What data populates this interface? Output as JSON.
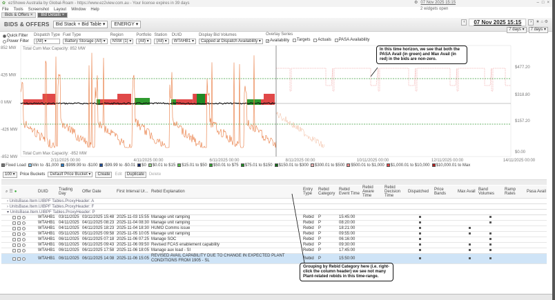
{
  "window": {
    "title": "ezShowe Australia by Global-Roam - https://www.ez2view.com.au - Your license expires in 39 days",
    "minimize": "–",
    "maximize": "□",
    "close": "×"
  },
  "menu": [
    "File",
    "Tools",
    "Screenshot",
    "Layout",
    "Window",
    "Help"
  ],
  "tabs": [
    {
      "label": "Bids & Offers",
      "active": false
    },
    {
      "label": "Bid Details",
      "active": true
    }
  ],
  "top_right": {
    "time": "07 Nov 2025 15:15",
    "status": "2 widgets open"
  },
  "header": {
    "title": "BIDS & OFFERS",
    "view_select": "Bid Stack + Bid Table",
    "market_select": "ENERGY"
  },
  "date_nav": {
    "date": "07 Nov 2025 15:15",
    "before": "7 days",
    "after": "7 days",
    "prev": "‹",
    "next": "›"
  },
  "filters": {
    "mode_options": [
      "Quick Filter",
      "Power Filter"
    ],
    "groups": [
      {
        "label": "Dispatch Type",
        "value": "(All)"
      },
      {
        "label": "Fuel Type",
        "value": "Battery Storage (All)"
      },
      {
        "label": "Region",
        "value": "NSW (1)"
      },
      {
        "label": "Portfolio",
        "value": "(All)"
      },
      {
        "label": "Station",
        "value": "(All)"
      },
      {
        "label": "DUID",
        "value": "WTAHB1"
      },
      {
        "label": "Display Bid Volumes",
        "value": "Capped at Dispatch Availability"
      }
    ],
    "overlay_label": "Overlay Series",
    "overlays": [
      "Availability",
      "Targets",
      "Actuals",
      "PASA Availability"
    ]
  },
  "chart_data": {
    "type": "area",
    "y_left_ticks": [
      "852 MW",
      "426 MW",
      "0 MW",
      "-426 MW",
      "-852 MW"
    ],
    "y_right_ticks": [
      "$477.20",
      "$318.80",
      "$157.20",
      "$0.00"
    ],
    "x_ticks": [
      "2/11/2025 00:00",
      "4/11/2025 00:00",
      "6/11/2025 00:00",
      "8/11/2025 00:00",
      "10/11/2025 00:00",
      "12/11/2025 00:00",
      "14/11/2025 00:00"
    ],
    "top_note": "Total Cum Max Capacity: 852 MW",
    "bottom_note": "Total Cum Max Capacity: -852 MW",
    "colors": {
      "price": "#e8763a",
      "pasa": "#3a9a3a",
      "max_avail": "#e03a3a",
      "fixed_load": "#111111"
    }
  },
  "legend": [
    {
      "label": "Fixed Load",
      "color": "#777777"
    },
    {
      "label": "Min to -$1,000",
      "color": "#8cc8ec"
    },
    {
      "label": "-$999.99 to -$100",
      "color": "#2f7ec4"
    },
    {
      "label": "-$99.99 to -$0.01",
      "color": "#1f4f9a"
    },
    {
      "label": "$0",
      "color": "#142a6a"
    },
    {
      "label": "$0.01 to $15",
      "color": "#9ad88a"
    },
    {
      "label": "$15.01 to $50",
      "color": "#5bbf4e"
    },
    {
      "label": "$50.01 to $75",
      "color": "#35a033"
    },
    {
      "label": "$75.01 to $150",
      "color": "#1f8a25"
    },
    {
      "label": "$150.01 to $300",
      "color": "#136b18"
    },
    {
      "label": "$300.01 to $500",
      "color": "#f2b8b8"
    },
    {
      "label": "$500.01 to $1,000",
      "color": "#ec8c8c"
    },
    {
      "label": "$1,000.01 to $10,000",
      "color": "#e04848"
    },
    {
      "label": "$10,000.01 to Max",
      "color": "#b21e1e"
    }
  ],
  "toolbar2": {
    "zoom": "100",
    "price_buckets_label": "Price Buckets",
    "price_bucket": "Default Price Bucket",
    "create": "Create",
    "edit": "Edit",
    "duplicate": "Duplicate",
    "delete": "Delete"
  },
  "table": {
    "columns": [
      "DUID",
      "Trading Day",
      "Offer Date",
      "First Interval Ur...",
      "Rebid Explanation",
      "Entry Type",
      "Rebid Category",
      "Rebid Event Time",
      "Rebid Aware Time",
      "Rebid Decision Time",
      "Dispatched",
      "Price Bands",
      "Max Avail",
      "Band Volumes",
      "Ramp Rates",
      "Pasa Avail"
    ],
    "groups": [
      "UnitsBase.Item.UIBPF Tables.ProxyHeader: A",
      "UnitsBase.Item.UIBPF Tables.ProxyHeader: F",
      "UnitsBase.Item.UIBPF Tables.ProxyHeader: P"
    ],
    "rows": [
      {
        "duid": "WTAHB1",
        "day": "03/11/2025",
        "offer": "03/11/2025 15:48",
        "first": "2025-11-03 15:55",
        "expl": "Manage unit ramping",
        "entry": "Rebid",
        "cat": "P",
        "event": "15:45:00",
        "disp": true,
        "bands": false,
        "max": false,
        "vol": true,
        "selected": false
      },
      {
        "duid": "WTAHB1",
        "day": "04/11/2025",
        "offer": "04/11/2025 08:23",
        "first": "2025-11-04 08:30",
        "expl": "Manage unit ramping",
        "entry": "Rebid",
        "cat": "P",
        "event": "08:20:00",
        "disp": true,
        "bands": false,
        "max": false,
        "vol": true,
        "selected": false
      },
      {
        "duid": "WTAHB1",
        "day": "04/11/2025",
        "offer": "04/11/2025 18:23",
        "first": "2025-11-04 18:30",
        "expl": "HUMO Comms issue",
        "entry": "Rebid",
        "cat": "P",
        "event": "18:21:00",
        "disp": true,
        "bands": false,
        "max": true,
        "vol": false,
        "selected": false
      },
      {
        "duid": "WTAHB1",
        "day": "05/11/2025",
        "offer": "05/11/2025 09:58",
        "first": "2025-11-05 10:05",
        "expl": "Manage unit ramping",
        "entry": "Rebid",
        "cat": "P",
        "event": "09:55:00",
        "disp": true,
        "bands": false,
        "max": true,
        "vol": true,
        "selected": false
      },
      {
        "duid": "WTAHB1",
        "day": "06/11/2025",
        "offer": "06/11/2025 07:18",
        "first": "2025-11-06 07:25",
        "expl": "Manage SOC",
        "entry": "Rebid",
        "cat": "P",
        "event": "06:16:00",
        "disp": true,
        "bands": false,
        "max": false,
        "vol": true,
        "selected": false
      },
      {
        "duid": "WTAHB1",
        "day": "06/11/2025",
        "offer": "06/11/2025 09:43",
        "first": "2025-11-06 09:50",
        "expl": "Revised FCAS enablement capability",
        "entry": "Rebid",
        "cat": "P",
        "event": "09:30:00",
        "disp": true,
        "bands": false,
        "max": true,
        "vol": true,
        "selected": false
      },
      {
        "duid": "WTAHB1",
        "day": "06/11/2025",
        "offer": "06/11/2025 17:58",
        "first": "2025-11-06 18:05",
        "expl": "Manage aux load - SI",
        "entry": "Rebid",
        "cat": "P",
        "event": "17:45:00",
        "disp": true,
        "bands": false,
        "max": true,
        "vol": true,
        "selected": false
      },
      {
        "duid": "WTAHB1",
        "day": "06/11/2025",
        "offer": "06/11/2025 14:08",
        "first": "2025-11-06 15:05",
        "expl": "REVISED AVAIL CAPABILITY DUE TO CHANGE IN EXPECTED PLANT CONDITIONS FROM 1905 - SL",
        "entry": "Rebid",
        "cat": "P",
        "event": "15:50:00",
        "disp": true,
        "bands": false,
        "max": true,
        "vol": true,
        "selected": true
      }
    ]
  },
  "callouts": {
    "top": "In this time horizon, we see that both the PASA Avail (in green) and Max Avail (in red) in the bids are non-zero.",
    "bottom": "Grouping by Rebid Category here (i.e. right-click the column header) we see not many Plant-related rebids in this time-range."
  }
}
